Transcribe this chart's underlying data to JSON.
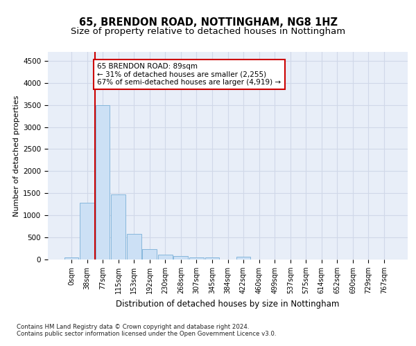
{
  "title1": "65, BRENDON ROAD, NOTTINGHAM, NG8 1HZ",
  "title2": "Size of property relative to detached houses in Nottingham",
  "xlabel": "Distribution of detached houses by size in Nottingham",
  "ylabel": "Number of detached properties",
  "bin_labels": [
    "0sqm",
    "38sqm",
    "77sqm",
    "115sqm",
    "153sqm",
    "192sqm",
    "230sqm",
    "268sqm",
    "307sqm",
    "345sqm",
    "384sqm",
    "422sqm",
    "460sqm",
    "499sqm",
    "537sqm",
    "575sqm",
    "614sqm",
    "652sqm",
    "690sqm",
    "729sqm",
    "767sqm"
  ],
  "bar_heights": [
    40,
    1280,
    3500,
    1480,
    580,
    240,
    110,
    80,
    50,
    40,
    0,
    55,
    0,
    0,
    0,
    0,
    0,
    0,
    0,
    0,
    0
  ],
  "bar_color": "#cce0f5",
  "bar_edge_color": "#7ab0d8",
  "vline_x_index": 2,
  "vline_color": "#cc0000",
  "annotation_text": "65 BRENDON ROAD: 89sqm\n← 31% of detached houses are smaller (2,255)\n67% of semi-detached houses are larger (4,919) →",
  "annotation_box_color": "#ffffff",
  "annotation_box_edge": "#cc0000",
  "ylim": [
    0,
    4700
  ],
  "yticks": [
    0,
    500,
    1000,
    1500,
    2000,
    2500,
    3000,
    3500,
    4000,
    4500
  ],
  "grid_color": "#d0d8e8",
  "background_color": "#e8eef8",
  "footer_text": "Contains HM Land Registry data © Crown copyright and database right 2024.\nContains public sector information licensed under the Open Government Licence v3.0.",
  "title_fontsize": 10.5,
  "subtitle_fontsize": 9.5,
  "axis_label_fontsize": 8.5,
  "tick_fontsize": 7,
  "ylabel_fontsize": 8
}
